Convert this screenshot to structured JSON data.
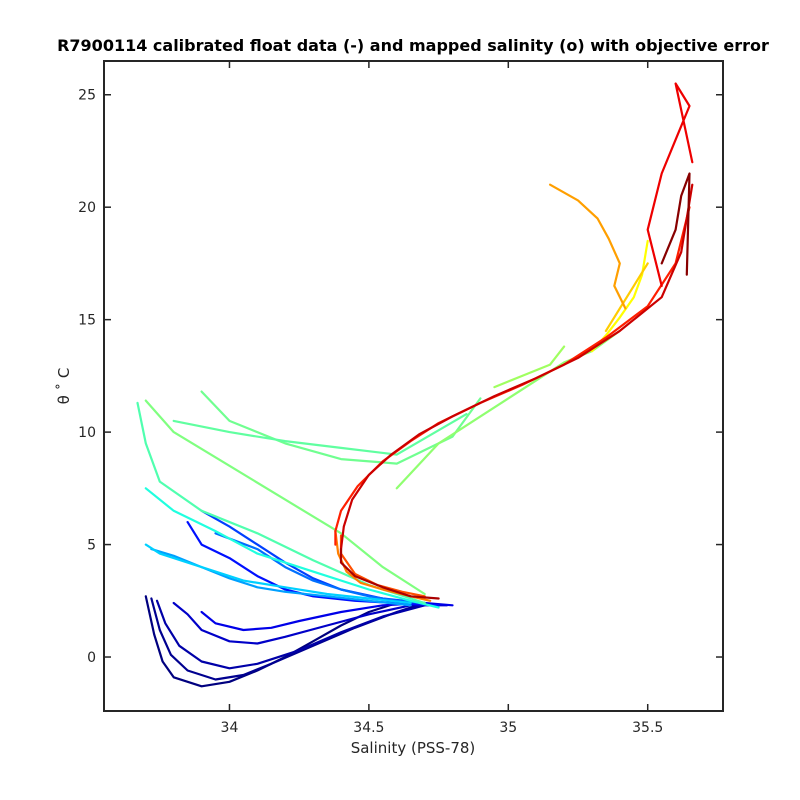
{
  "chart_data": {
    "type": "line",
    "title": "R7900114 calibrated float data (-) and mapped salinity (o) with objective error",
    "xlabel": "Salinity (PSS-78)",
    "ylabel": "θ ˚ C",
    "xlim": [
      33.55,
      35.77
    ],
    "ylim": [
      -2.4,
      26.5
    ],
    "x_ticks": [
      34,
      34.5,
      35,
      35.5
    ],
    "x_tick_labels": [
      "34",
      "34.5",
      "35",
      "35.5"
    ],
    "y_ticks": [
      0,
      5,
      10,
      15,
      20,
      25
    ],
    "y_tick_labels": [
      "0",
      "5",
      "10",
      "15",
      "20",
      "25"
    ],
    "grid": false,
    "legend": "none",
    "colormap": "jet",
    "series": [
      {
        "color": "#00007f",
        "x": [
          33.7,
          33.73,
          33.76,
          33.8,
          33.9,
          34.0,
          34.1,
          34.2,
          34.3,
          34.4,
          34.5,
          34.6
        ],
        "y": [
          2.7,
          1.0,
          -0.2,
          -0.9,
          -1.3,
          -1.1,
          -0.6,
          0.0,
          0.7,
          1.4,
          2.0,
          2.4
        ]
      },
      {
        "color": "#000090",
        "x": [
          33.72,
          33.75,
          33.79,
          33.85,
          33.95,
          34.05,
          34.15,
          34.3,
          34.45,
          34.6,
          34.7
        ],
        "y": [
          2.6,
          1.2,
          0.1,
          -0.6,
          -1.0,
          -0.8,
          -0.3,
          0.5,
          1.3,
          2.0,
          2.4
        ]
      },
      {
        "color": "#0000a8",
        "x": [
          33.74,
          33.77,
          33.82,
          33.9,
          34.0,
          34.1,
          34.25,
          34.4,
          34.55,
          34.7
        ],
        "y": [
          2.5,
          1.5,
          0.5,
          -0.2,
          -0.5,
          -0.3,
          0.3,
          1.1,
          1.8,
          2.3
        ]
      },
      {
        "color": "#0000c8",
        "x": [
          33.8,
          33.85,
          33.9,
          34.0,
          34.1,
          34.2,
          34.35,
          34.5,
          34.65,
          34.78
        ],
        "y": [
          2.4,
          1.9,
          1.2,
          0.7,
          0.6,
          0.9,
          1.4,
          1.9,
          2.3,
          2.3
        ]
      },
      {
        "color": "#0000e8",
        "x": [
          33.9,
          33.95,
          34.05,
          34.15,
          34.25,
          34.4,
          34.55,
          34.7,
          34.8
        ],
        "y": [
          2.0,
          1.5,
          1.2,
          1.3,
          1.6,
          2.0,
          2.3,
          2.4,
          2.3
        ]
      },
      {
        "color": "#0010ff",
        "x": [
          33.85,
          33.9,
          34.0,
          34.1,
          34.2,
          34.3,
          34.45,
          34.6,
          34.75
        ],
        "y": [
          6.0,
          5.0,
          4.4,
          3.6,
          3.0,
          2.7,
          2.5,
          2.4,
          2.3
        ]
      },
      {
        "color": "#0040ff",
        "x": [
          33.9,
          34.0,
          34.1,
          34.2,
          34.3,
          34.4,
          34.55,
          34.7
        ],
        "y": [
          6.5,
          5.8,
          5.0,
          4.2,
          3.5,
          3.0,
          2.6,
          2.4
        ]
      },
      {
        "color": "#0070ff",
        "x": [
          33.95,
          34.1,
          34.2,
          34.3,
          34.4,
          34.5,
          34.6,
          34.7
        ],
        "y": [
          5.5,
          4.8,
          4.0,
          3.4,
          3.0,
          2.7,
          2.5,
          2.4
        ]
      },
      {
        "color": "#00a0ff",
        "x": [
          33.72,
          33.8,
          33.9,
          34.0,
          34.1,
          34.2,
          34.35,
          34.5,
          34.65
        ],
        "y": [
          4.8,
          4.5,
          4.0,
          3.5,
          3.1,
          2.9,
          2.7,
          2.5,
          2.3
        ]
      },
      {
        "color": "#00d0ff",
        "x": [
          33.7,
          33.75,
          33.85,
          33.95,
          34.05,
          34.2,
          34.35,
          34.5,
          34.65
        ],
        "y": [
          5.0,
          4.6,
          4.2,
          3.8,
          3.4,
          3.1,
          2.8,
          2.6,
          2.4
        ]
      },
      {
        "color": "#20ffdf",
        "x": [
          33.7,
          33.8,
          33.95,
          34.1,
          34.3,
          34.5,
          34.65,
          34.75
        ],
        "y": [
          7.5,
          6.5,
          5.6,
          4.6,
          3.8,
          3.0,
          2.5,
          2.2
        ]
      },
      {
        "color": "#50ffaf",
        "x": [
          33.67,
          33.7,
          33.75,
          33.9,
          34.1,
          34.3,
          34.5,
          34.7
        ],
        "y": [
          11.3,
          9.5,
          7.8,
          6.5,
          5.5,
          4.3,
          3.2,
          2.4
        ]
      },
      {
        "color": "#80ff80",
        "x": [
          33.7,
          33.8,
          34.0,
          34.2,
          34.4,
          34.55,
          34.7
        ],
        "y": [
          11.4,
          10.0,
          8.5,
          7.0,
          5.5,
          4.0,
          2.8
        ]
      },
      {
        "color": "#70ff90",
        "x": [
          33.9,
          34.0,
          34.2,
          34.4,
          34.6,
          34.8,
          34.9
        ],
        "y": [
          11.8,
          10.5,
          9.5,
          8.8,
          8.6,
          9.8,
          11.5
        ]
      },
      {
        "color": "#60ffa0",
        "x": [
          33.8,
          34.0,
          34.2,
          34.4,
          34.6,
          34.85
        ],
        "y": [
          10.5,
          10.0,
          9.6,
          9.3,
          9.0,
          10.8
        ]
      },
      {
        "color": "#90ff70",
        "x": [
          34.6,
          34.75,
          34.9,
          35.0,
          35.1,
          35.2,
          35.3,
          35.4
        ],
        "y": [
          7.5,
          9.5,
          10.7,
          11.5,
          12.3,
          13.1,
          13.6,
          14.5
        ]
      },
      {
        "color": "#a0ff60",
        "x": [
          34.95,
          35.05,
          35.15,
          35.2
        ],
        "y": [
          12.0,
          12.5,
          13.0,
          13.8
        ]
      },
      {
        "color": "#ffff00",
        "x": [
          35.3,
          35.35,
          35.4,
          35.45,
          35.48,
          35.5
        ],
        "y": [
          13.6,
          14.3,
          15.1,
          16.0,
          17.0,
          18.5
        ]
      },
      {
        "color": "#ffcc00",
        "x": [
          35.35,
          35.4,
          35.45,
          35.5
        ],
        "y": [
          14.5,
          15.5,
          16.5,
          17.5
        ]
      },
      {
        "color": "#ff9f00",
        "x": [
          35.15,
          35.25,
          35.32,
          35.36,
          35.4,
          35.38,
          35.42
        ],
        "y": [
          21.0,
          20.3,
          19.5,
          18.6,
          17.5,
          16.5,
          15.5
        ]
      },
      {
        "color": "#ff7f00",
        "x": [
          34.38,
          34.39,
          34.42,
          34.47,
          34.55,
          34.65,
          34.72
        ],
        "y": [
          5.6,
          4.6,
          3.8,
          3.3,
          3.0,
          2.7,
          2.5
        ]
      },
      {
        "color": "#ff4f00",
        "x": [
          34.4,
          34.4,
          34.45,
          34.53,
          34.62,
          34.7
        ],
        "y": [
          5.4,
          4.6,
          3.7,
          3.2,
          2.9,
          2.7
        ]
      },
      {
        "color": "#ff1f00",
        "x": [
          34.38,
          34.38,
          34.4,
          34.46,
          34.55,
          34.65,
          34.75,
          34.9,
          35.05,
          35.2,
          35.35,
          35.5,
          35.6,
          35.65
        ],
        "y": [
          5.0,
          5.6,
          6.5,
          7.6,
          8.7,
          9.6,
          10.4,
          11.3,
          12.1,
          13.0,
          14.2,
          15.6,
          17.5,
          20.0
        ]
      },
      {
        "color": "#ee0000",
        "x": [
          35.55,
          35.5,
          35.55,
          35.6,
          35.65,
          35.6,
          35.66
        ],
        "y": [
          16.5,
          19.0,
          21.5,
          23.0,
          24.5,
          25.5,
          22.0
        ]
      },
      {
        "color": "#cc0000",
        "x": [
          34.4,
          34.41,
          34.44,
          34.5,
          34.58,
          34.68,
          34.8,
          34.95,
          35.1,
          35.25,
          35.4,
          35.55,
          35.62,
          35.66
        ],
        "y": [
          4.8,
          5.8,
          7.0,
          8.1,
          9.0,
          9.9,
          10.7,
          11.6,
          12.4,
          13.3,
          14.5,
          16.0,
          18.0,
          21.0
        ]
      },
      {
        "color": "#aa0000",
        "x": [
          34.4,
          34.4,
          34.45,
          34.55,
          34.65,
          34.75
        ],
        "y": [
          4.8,
          4.2,
          3.6,
          3.1,
          2.7,
          2.6
        ]
      },
      {
        "color": "#880000",
        "x": [
          35.55,
          35.6,
          35.62,
          35.65,
          35.64
        ],
        "y": [
          17.5,
          19.0,
          20.5,
          21.5,
          17.0
        ]
      }
    ]
  }
}
